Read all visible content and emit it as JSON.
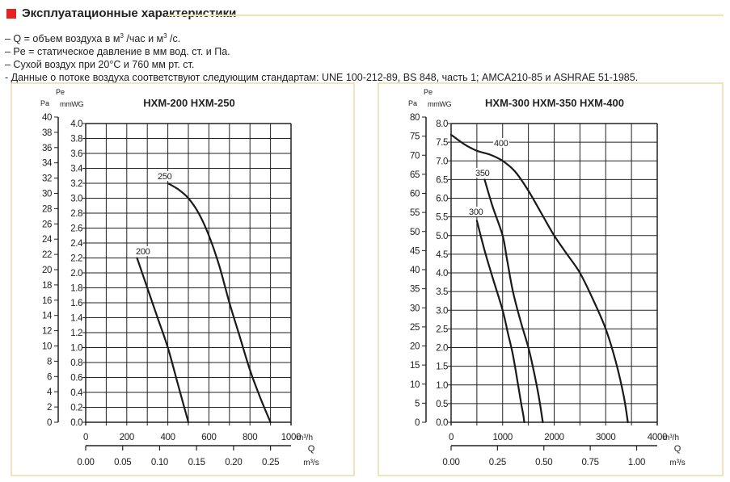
{
  "header": {
    "title": "Эксплуатационные характеристики",
    "accent_color": "#e52421"
  },
  "notes": [
    {
      "pre": "– Q = объем воздуха в м",
      "sup1": "3",
      "mid": " /час и м",
      "sup2": "3",
      "post": " /с."
    },
    {
      "text": "– Pe = статическое давление в мм вод. ст. и Па."
    },
    {
      "text": "– Сухой воздух при 20°C и 760 мм рт. ст."
    },
    {
      "text": "- Данные о потоке воздуха соответствуют следующим стандартам: UNE 100-212-89, BS 848, часть 1; AMCA210-85 и ASHRAE 51-1985."
    }
  ],
  "chart_data": [
    {
      "type": "line",
      "title": "HXM-200   HXM-250",
      "ylabel_top": "Pe",
      "ylabel_pa": "Pa",
      "ylabel_mmwg": "mmWG",
      "xlabel_q": "Q",
      "xunit_h": "m³/h",
      "xunit_s": "m³/s",
      "xlim": [
        0,
        1000
      ],
      "ylim": [
        0,
        4.0
      ],
      "grid": true,
      "x_ticks": [
        "0",
        "200",
        "400",
        "600",
        "800",
        "1000"
      ],
      "x_tick_values": [
        0,
        200,
        400,
        600,
        800,
        1000
      ],
      "y_ticks": [
        "0.0",
        "0.2",
        "0.4",
        "0.6",
        "0.8",
        "1.0",
        "1.2",
        "1.4",
        "1.6",
        "1.8",
        "2.0",
        "2.2",
        "2.4",
        "2.6",
        "2.8",
        "3.0",
        "3.2",
        "3.4",
        "3.6",
        "3.8",
        "4.0"
      ],
      "pa_ticks": [
        "0",
        "2",
        "4",
        "6",
        "8",
        "10",
        "12",
        "14",
        "16",
        "18",
        "20",
        "22",
        "24",
        "26",
        "28",
        "30",
        "32",
        "34",
        "36",
        "38",
        "40"
      ],
      "q_s_ticks": [
        "0.00",
        "0.05",
        "0.10",
        "0.15",
        "0.20",
        "0.25"
      ],
      "series": [
        {
          "name": "200",
          "x": [
            250,
            300,
            350,
            400,
            450,
            500
          ],
          "y": [
            2.2,
            1.8,
            1.4,
            1.0,
            0.5,
            0.0
          ]
        },
        {
          "name": "250",
          "x": [
            400,
            450,
            500,
            550,
            600,
            650,
            700,
            750,
            800,
            850,
            900
          ],
          "y": [
            3.2,
            3.12,
            3.0,
            2.8,
            2.5,
            2.1,
            1.6,
            1.15,
            0.7,
            0.33,
            0.0
          ]
        }
      ]
    },
    {
      "type": "line",
      "title": "HXM-300   HXM-350   HXM-400",
      "ylabel_top": "Pe",
      "ylabel_pa": "Pa",
      "ylabel_mmwg": "mmWG",
      "xlabel_q": "Q",
      "xunit_h": "m³/h",
      "xunit_s": "m³/s",
      "xlim": [
        0,
        4000
      ],
      "ylim": [
        0,
        8.0
      ],
      "grid": true,
      "x_ticks": [
        "0",
        "1000",
        "2000",
        "3000",
        "4000"
      ],
      "x_tick_values": [
        0,
        1000,
        2000,
        3000,
        4000
      ],
      "y_ticks": [
        "0.0",
        "0.5",
        "1.0",
        "1.5",
        "2.0",
        "2.5",
        "3.0",
        "3.5",
        "4.0",
        "4.5",
        "5.0",
        "5.5",
        "6.0",
        "6.5",
        "7.0",
        "7.5",
        "8.0"
      ],
      "pa_ticks": [
        "0",
        "5",
        "10",
        "15",
        "20",
        "25",
        "30",
        "35",
        "40",
        "45",
        "50",
        "55",
        "60",
        "65",
        "70",
        "75",
        "80"
      ],
      "q_s_ticks": [
        "0.00",
        "0.25",
        "0.50",
        "0.75",
        "1.00"
      ],
      "series": [
        {
          "name": "300",
          "x": [
            500,
            650,
            800,
            1000,
            1100,
            1200,
            1300,
            1360,
            1400,
            1420
          ],
          "y": [
            5.4,
            4.6,
            3.9,
            3.0,
            2.4,
            1.8,
            1.0,
            0.5,
            0.2,
            0.0
          ]
        },
        {
          "name": "350",
          "x": [
            650,
            800,
            1000,
            1080,
            1200,
            1350,
            1500,
            1600,
            1700,
            1780
          ],
          "y": [
            6.5,
            5.8,
            5.0,
            4.4,
            3.5,
            2.7,
            2.0,
            1.4,
            0.7,
            0.0
          ]
        },
        {
          "name": "400",
          "x": [
            0,
            250,
            500,
            750,
            1000,
            1250,
            1500,
            1750,
            2000,
            2250,
            2500,
            2750,
            3000,
            3200,
            3350,
            3430
          ],
          "y": [
            7.7,
            7.45,
            7.27,
            7.17,
            7.0,
            6.7,
            6.2,
            5.6,
            5.0,
            4.5,
            4.0,
            3.3,
            2.5,
            1.6,
            0.7,
            0.0
          ]
        }
      ]
    }
  ]
}
